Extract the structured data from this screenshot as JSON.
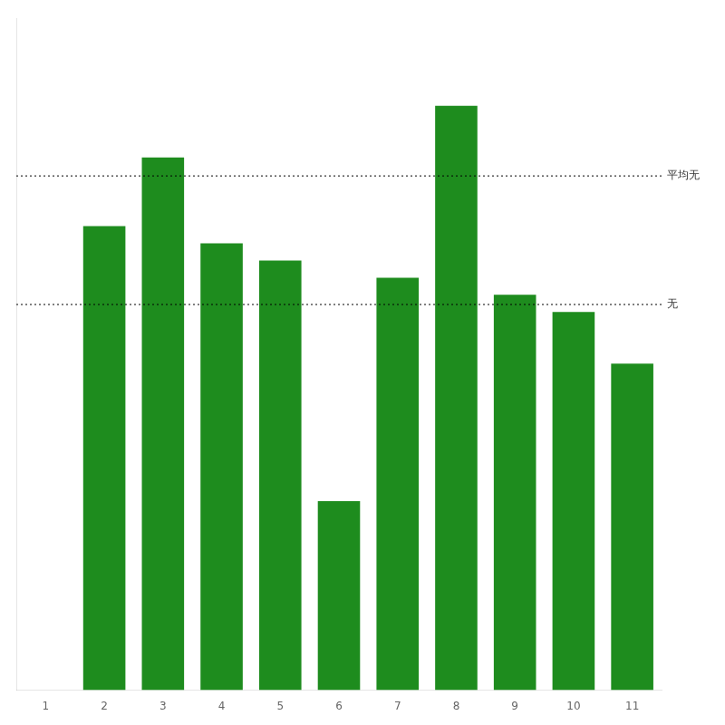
{
  "chart_data": {
    "type": "bar",
    "categories": [
      "1",
      "2",
      "3",
      "4",
      "5",
      "6",
      "7",
      "8",
      "9",
      "10",
      "11"
    ],
    "values": [
      0,
      2.7,
      3.1,
      2.6,
      2.5,
      1.1,
      2.4,
      3.4,
      2.3,
      2.2,
      1.9
    ],
    "color": "#1e8c1e",
    "ylim": [
      0,
      3.91
    ],
    "tick_labels": "x",
    "grid": false,
    "annotations": [
      {
        "text": "平均无",
        "y": 2.992
      },
      {
        "text": "无",
        "y": 2.244
      }
    ]
  }
}
